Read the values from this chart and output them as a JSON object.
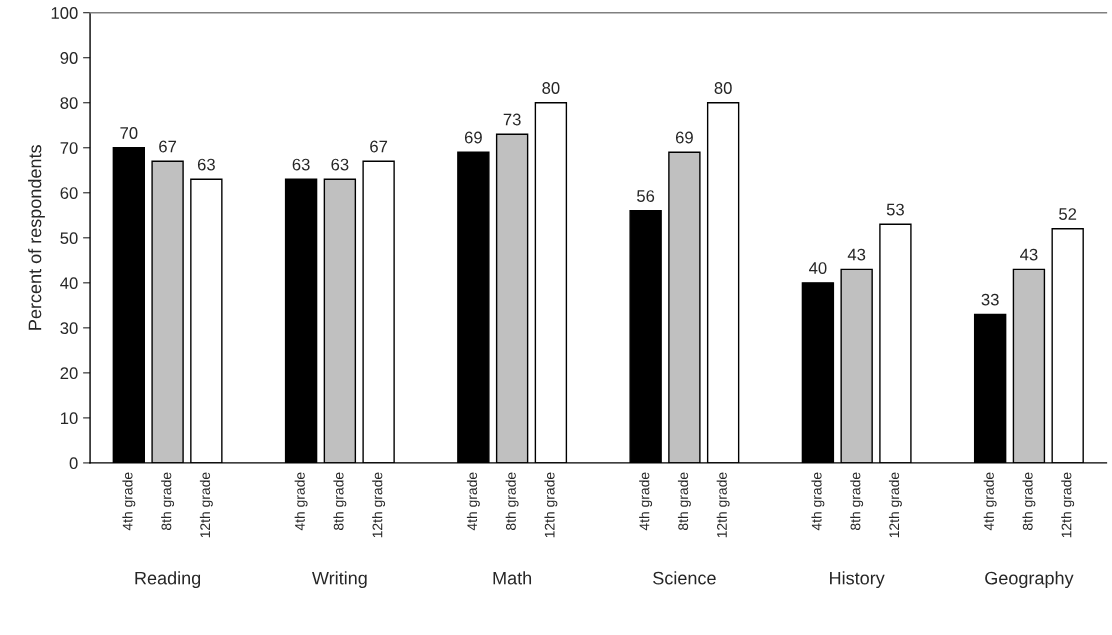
{
  "chart_data": {
    "type": "bar",
    "ylabel": "Percent of respondents",
    "categories": [
      "Reading",
      "Writing",
      "Math",
      "Science",
      "History",
      "Geography"
    ],
    "series": [
      {
        "name": "4th grade",
        "color": "#000000",
        "values": [
          70,
          63,
          69,
          56,
          40,
          33
        ]
      },
      {
        "name": "8th grade",
        "color": "#c0c0c0",
        "values": [
          67,
          63,
          73,
          69,
          43,
          43
        ]
      },
      {
        "name": "12th grade",
        "color": "#ffffff",
        "values": [
          63,
          67,
          80,
          80,
          53,
          52
        ]
      }
    ],
    "ylim": [
      0,
      100
    ],
    "yticks": [
      0,
      10,
      20,
      30,
      40,
      50,
      60,
      70,
      80,
      90,
      100
    ],
    "data_labels": true,
    "grid": false,
    "legend": false
  }
}
